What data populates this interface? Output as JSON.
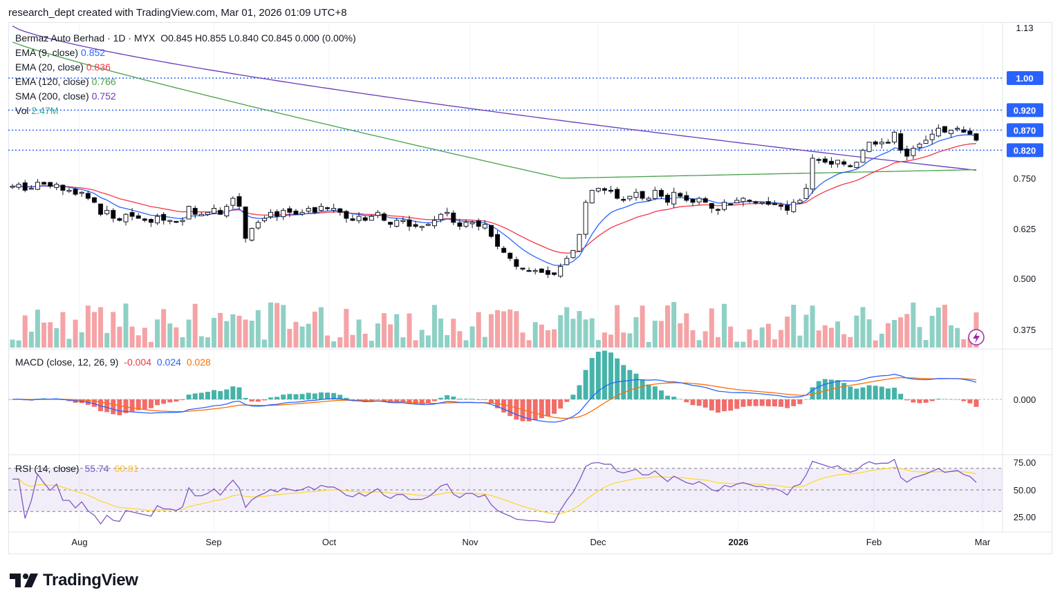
{
  "header": {
    "caption": "research_dept created with TradingView.com, Mar 01, 2026 01:09 UTC+8"
  },
  "legend": {
    "title": "Bermaz Auto Berhad · 1D · MYX",
    "ohlc": "O0.845  H0.855  L0.840  C0.845  0.000 (0.00%)",
    "indicators": [
      {
        "label": "EMA (9, close)",
        "value": "0.852",
        "color": "#2962ff"
      },
      {
        "label": "EMA (20, close)",
        "value": "0.836",
        "color": "#f23645"
      },
      {
        "label": "EMA (120, close)",
        "value": "0.766",
        "color": "#43a047"
      },
      {
        "label": "SMA (200, close)",
        "value": "0.752",
        "color": "#673ab7"
      },
      {
        "label": "Vol",
        "value": "2.47M",
        "color": "#22ab94"
      }
    ]
  },
  "macd_legend": {
    "label": "MACD (close, 12, 26, 9)",
    "v1": "-0.004",
    "v2": "0.024",
    "v3": "0.028",
    "c1": "#f23645",
    "c2": "#2962ff",
    "c3": "#ff6d00"
  },
  "rsi_legend": {
    "label": "RSI (14, close)",
    "v1": "55.74",
    "v2": "60.81",
    "c1": "#7e57c2",
    "c2": "#fdd835"
  },
  "price_axis": [
    "1.13",
    "0.750",
    "0.625",
    "0.500",
    "0.375"
  ],
  "price_tags": [
    {
      "value": "1.00",
      "price": 1.0
    },
    {
      "value": "0.920",
      "price": 0.92
    },
    {
      "value": "0.870",
      "price": 0.87
    },
    {
      "value": "0.820",
      "price": 0.82
    }
  ],
  "macd_axis": [
    "0.000"
  ],
  "rsi_axis": [
    "75.00",
    "50.00",
    "25.00"
  ],
  "time_axis": [
    "Aug",
    "Sep",
    "Oct",
    "Nov",
    "Dec",
    "2026",
    "Feb",
    "Mar"
  ],
  "brand": "TradingView",
  "colors": {
    "up": "#22ab94",
    "down": "#000000",
    "vol_up": "#8fd0c5",
    "vol_down": "#f5a3a6",
    "tag": "#2962ff"
  },
  "chart_data": {
    "type": "candlestick",
    "symbol": "Bermaz Auto Berhad",
    "interval": "1D",
    "ylim": [
      0.33,
      1.14
    ],
    "close_approx": [
      0.73,
      0.735,
      0.72,
      0.725,
      0.74,
      0.735,
      0.73,
      0.735,
      0.72,
      0.72,
      0.71,
      0.715,
      0.7,
      0.69,
      0.66,
      0.67,
      0.65,
      0.645,
      0.66,
      0.655,
      0.65,
      0.645,
      0.64,
      0.655,
      0.645,
      0.645,
      0.64,
      0.645,
      0.68,
      0.66,
      0.66,
      0.665,
      0.675,
      0.66,
      0.68,
      0.7,
      0.68,
      0.6,
      0.625,
      0.64,
      0.65,
      0.665,
      0.655,
      0.67,
      0.665,
      0.66,
      0.665,
      0.675,
      0.665,
      0.68,
      0.675,
      0.675,
      0.665,
      0.65,
      0.645,
      0.655,
      0.645,
      0.655,
      0.665,
      0.645,
      0.635,
      0.645,
      0.645,
      0.63,
      0.63,
      0.63,
      0.635,
      0.645,
      0.66,
      0.665,
      0.64,
      0.63,
      0.64,
      0.64,
      0.63,
      0.635,
      0.605,
      0.58,
      0.565,
      0.55,
      0.53,
      0.525,
      0.52,
      0.52,
      0.515,
      0.51,
      0.51,
      0.53,
      0.55,
      0.57,
      0.61,
      0.69,
      0.72,
      0.725,
      0.72,
      0.72,
      0.7,
      0.695,
      0.705,
      0.715,
      0.7,
      0.7,
      0.72,
      0.705,
      0.69,
      0.715,
      0.705,
      0.695,
      0.69,
      0.7,
      0.69,
      0.675,
      0.67,
      0.69,
      0.685,
      0.695,
      0.7,
      0.695,
      0.69,
      0.69,
      0.685,
      0.685,
      0.68,
      0.67,
      0.69,
      0.695,
      0.725,
      0.8,
      0.795,
      0.79,
      0.785,
      0.795,
      0.785,
      0.78,
      0.79,
      0.82,
      0.84,
      0.835,
      0.84,
      0.84,
      0.865,
      0.82,
      0.805,
      0.825,
      0.835,
      0.845,
      0.86,
      0.875,
      0.865,
      0.87,
      0.875,
      0.865,
      0.86,
      0.845
    ],
    "ema9_last": 0.852,
    "ema20_last": 0.836,
    "ema120_last": 0.766,
    "sma200_last": 0.752,
    "volume_last": "2.47M",
    "macd": {
      "macd": 0.024,
      "signal": 0.028,
      "hist": -0.004
    },
    "rsi": {
      "rsi": 55.74,
      "ma": 60.81,
      "levels": [
        70,
        50,
        30
      ]
    },
    "horizontal_levels": [
      1.0,
      0.92,
      0.87,
      0.82
    ],
    "x_ticks": [
      "Aug",
      "Sep",
      "Oct",
      "Nov",
      "Dec",
      "2026",
      "Feb",
      "Mar"
    ]
  }
}
